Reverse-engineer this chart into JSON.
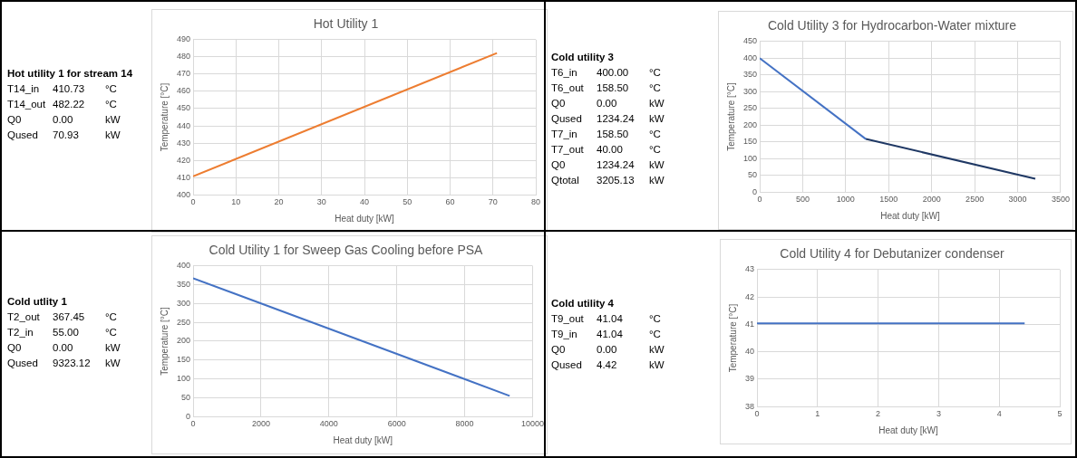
{
  "chart_data": [
    {
      "type": "line",
      "title": "Hot Utility 1",
      "xlabel": "Heat duty [kW]",
      "ylabel": "Temperature [°C]",
      "annotations": [
        "Hot utility 1 for stream 14",
        "T14_in\t410.73\t°C",
        "T14_out\t482.22\t°C",
        "Q0\t0.00\tkW",
        "Qused\t70.93\tkW"
      ],
      "series": [
        {
          "color": "#ed7d31",
          "x": [
            0,
            70.93
          ],
          "values": [
            410.73,
            482.22
          ]
        }
      ],
      "xlim": [
        0,
        80
      ],
      "xticks": [
        0,
        10,
        20,
        30,
        40,
        50,
        60,
        70,
        80
      ],
      "ylim": [
        400,
        490
      ],
      "yticks": [
        400,
        410,
        420,
        430,
        440,
        450,
        460,
        470,
        480,
        490
      ],
      "grid": true
    },
    {
      "type": "line",
      "title": "Cold Utility 3 for Hydrocarbon-Water mixture",
      "xlabel": "Heat duty [kW]",
      "ylabel": "Temperature [°C]",
      "annotations": [
        "Cold utility 3",
        "T6_in\t400.00\t°C",
        "T6_out\t158.50\t°C",
        "Q0\t0.00\tkW",
        "Qused\t1234.24\tkW",
        "T7_in\t158.50\t°C",
        "T7_out\t40.00\t°C",
        "Q0\t1234.24\tkW",
        "Qtotal\t3205.13\tkW"
      ],
      "series": [
        {
          "color": "#4472c4",
          "x": [
            0,
            1234.24
          ],
          "values": [
            400,
            158.5
          ]
        },
        {
          "color": "#1f3864",
          "x": [
            1234.24,
            3205.13
          ],
          "values": [
            158.5,
            40
          ]
        }
      ],
      "xlim": [
        0,
        3500
      ],
      "xticks": [
        0,
        500,
        1000,
        1500,
        2000,
        2500,
        3000,
        3500
      ],
      "ylim": [
        0,
        450
      ],
      "yticks": [
        0,
        50,
        100,
        150,
        200,
        250,
        300,
        350,
        400,
        450
      ],
      "grid": true
    },
    {
      "type": "line",
      "title": "Cold Utility 1 for Sweep Gas Cooling before PSA",
      "xlabel": "Heat duty [kW]",
      "ylabel": "Temperature [°C]",
      "annotations": [
        "Cold utlity 1",
        "T2_out\t367.45\t°C",
        "T2_in\t55.00\t°C",
        "Q0\t0.00\tkW",
        "Qused\t9323.12\tkW"
      ],
      "series": [
        {
          "color": "#4472c4",
          "x": [
            0,
            9323.12
          ],
          "values": [
            367.45,
            55
          ]
        }
      ],
      "xlim": [
        0,
        10000
      ],
      "xticks": [
        0,
        2000,
        4000,
        6000,
        8000,
        10000
      ],
      "ylim": [
        0,
        400
      ],
      "yticks": [
        0,
        50,
        100,
        150,
        200,
        250,
        300,
        350,
        400
      ],
      "grid": true
    },
    {
      "type": "line",
      "title": "Cold Utility 4 for Debutanizer condenser",
      "xlabel": "Heat duty [kW]",
      "ylabel": "Temperature [°C]",
      "annotations": [
        "Cold utility 4",
        "T9_out\t41.04\t°C",
        "T9_in\t41.04\t°C",
        "Q0\t0.00\tkW",
        "Qused\t4.42\tkW"
      ],
      "series": [
        {
          "color": "#4472c4",
          "x": [
            0,
            4.42
          ],
          "values": [
            41.04,
            41.04
          ]
        }
      ],
      "xlim": [
        0,
        5
      ],
      "xticks": [
        0,
        1,
        2,
        3,
        4,
        5
      ],
      "ylim": [
        38,
        43
      ],
      "yticks": [
        38,
        39,
        40,
        41,
        42,
        43
      ],
      "grid": true
    }
  ]
}
